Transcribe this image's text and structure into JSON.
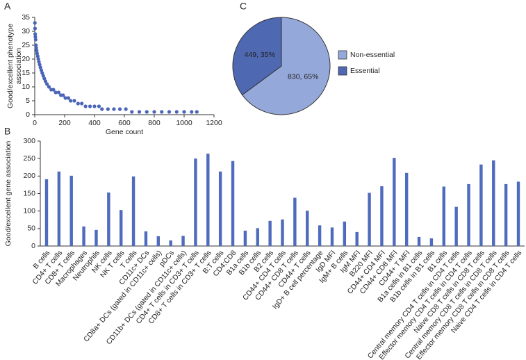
{
  "chart_data": [
    {
      "type": "scatter",
      "panel": "A",
      "xlabel": "Gene count",
      "ylabel": [
        "Good/excellent phenotype",
        "association"
      ],
      "color": "#4a64b8",
      "x": [
        1,
        2,
        3,
        4,
        6,
        8,
        10,
        13,
        16,
        20,
        24,
        28,
        33,
        38,
        44,
        50,
        57,
        64,
        72,
        82,
        95,
        110,
        125,
        140,
        160,
        175,
        190,
        205,
        225,
        240,
        265,
        290,
        315,
        340,
        370,
        400,
        430,
        450,
        490,
        530,
        570,
        610,
        650,
        700,
        750,
        800,
        850,
        900,
        950,
        1000,
        1050,
        1085
      ],
      "values": [
        33,
        31,
        29,
        28,
        27,
        25,
        24,
        23,
        22,
        21,
        20,
        19,
        18,
        17,
        16,
        15,
        14,
        13,
        12,
        11,
        10,
        9,
        9,
        8,
        8,
        7,
        7,
        6,
        6,
        5,
        5,
        4,
        4,
        3,
        3,
        3,
        3,
        2,
        2,
        2,
        2,
        2,
        1,
        1,
        1,
        1,
        1,
        1,
        1,
        1,
        1,
        1
      ],
      "xlim": [
        0,
        1200
      ],
      "xticks": [
        0,
        200,
        400,
        600,
        800,
        1000,
        1200
      ],
      "ylim": [
        0,
        35
      ],
      "yticks": [
        0,
        5,
        10,
        15,
        20,
        25,
        30,
        35
      ]
    },
    {
      "type": "pie",
      "panel": "C",
      "categories": [
        "Non-essential",
        "Essential"
      ],
      "values": [
        830,
        449
      ],
      "value_labels": [
        "830, 65%",
        "449, 35%"
      ],
      "colors": [
        "#95a8da",
        "#4e68b2"
      ],
      "legend": "right"
    },
    {
      "type": "bar",
      "panel": "B",
      "ylabel": "Good/excellent gene association",
      "color": "#4f6bbd",
      "categories": [
        "B cells",
        "CD4+ T cells",
        "CD8+ T cells",
        "Macrophages",
        "Neutrophils",
        "NK cells",
        "NK T cells",
        "T cells",
        "CD11c+ DCs",
        "CD8a+ DCs (gated in CD11c+ cells)",
        "pDCs",
        "CD11b+ DCs (gated in CD11c+ cells)",
        "CD4+ T cells in CD3+ T cells",
        "CD8+ T cells in CD3+ T cells",
        "B:T cells",
        "CD4:CD8",
        "B1a cells",
        "B1b cells",
        "B2 cells",
        "CD44+ CD4 T cells",
        "CD44+ CD8 T cells",
        "CD44+ T cells",
        "IgD+ B cell percentage",
        "IgD MFI",
        "IgM+ B cells",
        "IgM MFI",
        "B220 MFI",
        "CD44+ CD4 MFI",
        "CD44+ CD8 MFI",
        "CD44+ T MFI",
        "B1a cells in B1 cells",
        "B1b cells in B1 cells",
        "B1 cells",
        "Central memory CD4 T cells in CD4 T cells",
        "Effector memory CD4 T cells in CD4 T cells",
        "Naive CD8 T cells in CD8 T cells",
        "Central memory CD8 T cells in CD8 T cells",
        "Effector memory CD8 T cells in CD8 T cells",
        "Naive CD4 T cells in CD4 T cells"
      ],
      "values": [
        191,
        213,
        201,
        56,
        46,
        153,
        103,
        199,
        42,
        28,
        16,
        29,
        250,
        264,
        213,
        243,
        44,
        51,
        72,
        76,
        138,
        101,
        59,
        53,
        70,
        40,
        152,
        171,
        252,
        209,
        26,
        22,
        170,
        112,
        177,
        233,
        245,
        177,
        184
      ],
      "ylim": [
        0,
        300
      ],
      "yticks": [
        0,
        50,
        100,
        150,
        200,
        250,
        300
      ]
    }
  ]
}
